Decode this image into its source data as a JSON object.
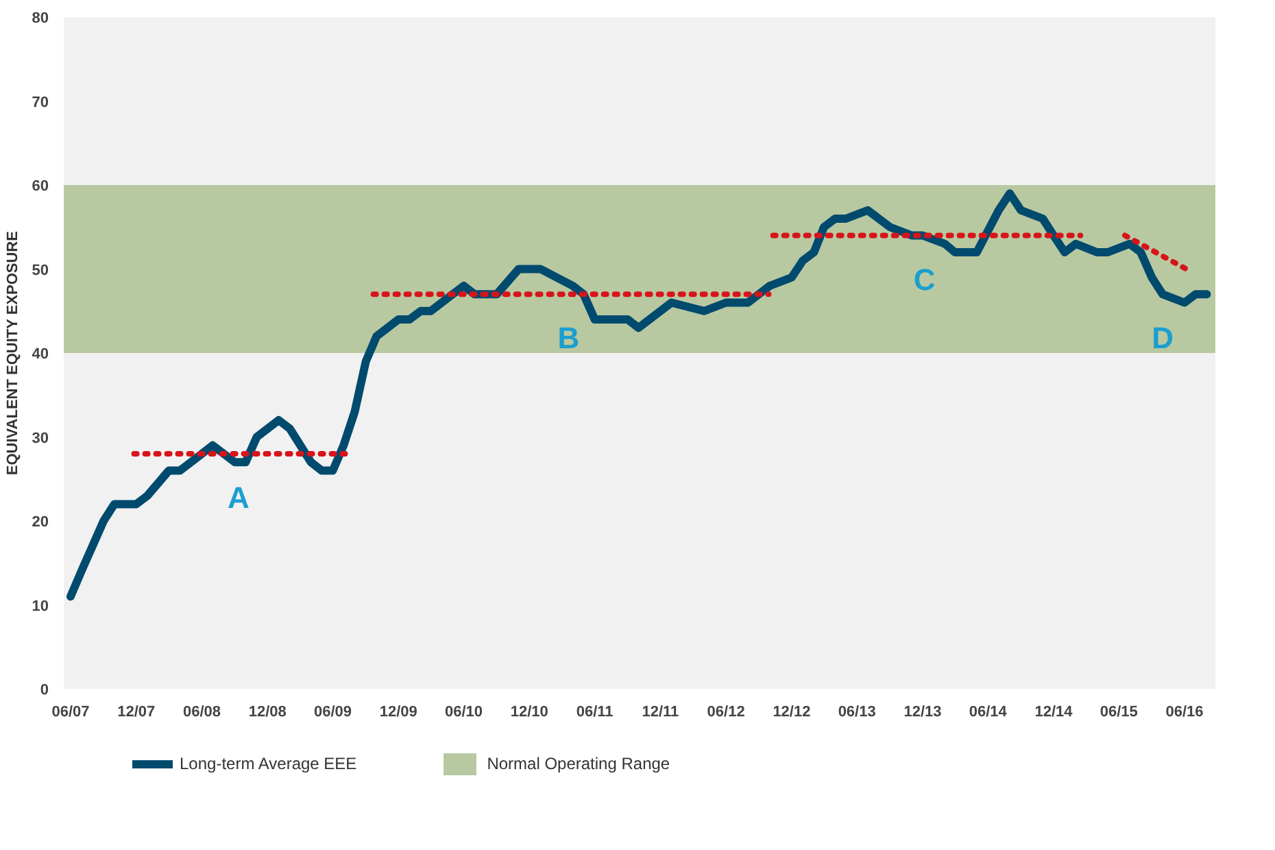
{
  "chart_data": {
    "type": "line",
    "ylabel": "EQUIVALENT EQUITY EXPOSURE",
    "xlim": [
      "2007-05-13",
      "2016-02-25"
    ],
    "ylim": [
      0,
      80
    ],
    "yticks": [
      0,
      10,
      20,
      30,
      40,
      50,
      60,
      70,
      80
    ],
    "xticks": [
      {
        "value": "2007-06",
        "label": "06/07"
      },
      {
        "value": "2007-12",
        "label": "12/07"
      },
      {
        "value": "2008-06",
        "label": "06/08"
      },
      {
        "value": "2008-12",
        "label": "12/08"
      },
      {
        "value": "2009-06",
        "label": "06/09"
      },
      {
        "value": "2009-12",
        "label": "12/09"
      },
      {
        "value": "2010-06",
        "label": "06/10"
      },
      {
        "value": "2010-12",
        "label": "12/10"
      },
      {
        "value": "2011-06",
        "label": "06/11"
      },
      {
        "value": "2011-12",
        "label": "12/11"
      },
      {
        "value": "2012-06",
        "label": "06/12"
      },
      {
        "value": "2012-12",
        "label": "12/12"
      },
      {
        "value": "2013-06",
        "label": "06/13"
      },
      {
        "value": "2013-12",
        "label": "12/13"
      },
      {
        "value": "2014-06",
        "label": "06/14"
      },
      {
        "value": "2014-12",
        "label": "12/14"
      },
      {
        "value": "2015-06",
        "label": "06/15"
      },
      {
        "value": "2015-12",
        "label": "06/16"
      }
    ],
    "grid": false,
    "legend": "bottom",
    "marker": "none",
    "series": [
      {
        "name": "Long-term Average EEE",
        "color": "#004a6e",
        "line_style": "solid",
        "x": [
          "2007-06",
          "2007-07",
          "2007-09",
          "2007-10",
          "2007-11",
          "2007-12",
          "2008-01",
          "2008-03",
          "2008-04",
          "2008-06",
          "2008-07",
          "2008-09",
          "2008-10",
          "2008-11",
          "2009-01",
          "2009-02",
          "2009-04",
          "2009-05",
          "2009-06",
          "2009-07",
          "2009-08",
          "2009-09",
          "2009-10",
          "2009-12",
          "2010-01",
          "2010-02",
          "2010-03",
          "2010-05",
          "2010-06",
          "2010-07",
          "2010-09",
          "2010-11",
          "2010-12",
          "2011-01",
          "2011-04",
          "2011-05",
          "2011-06",
          "2011-07",
          "2011-09",
          "2011-10",
          "2012-01",
          "2012-04",
          "2012-06",
          "2012-08",
          "2012-10",
          "2012-12",
          "2013-01",
          "2013-02",
          "2013-03",
          "2013-04",
          "2013-05",
          "2013-07",
          "2013-08",
          "2013-09",
          "2013-11",
          "2013-12",
          "2014-02",
          "2014-03",
          "2014-04",
          "2014-05",
          "2014-07",
          "2014-08",
          "2014-09",
          "2014-11",
          "2014-12",
          "2015-01",
          "2015-02",
          "2015-04",
          "2015-05",
          "2015-07",
          "2015-08",
          "2015-09",
          "2015-10",
          "2015-12",
          "2016-01",
          "2016-02"
        ],
        "values": [
          11,
          14,
          20,
          22,
          22,
          22,
          23,
          26,
          26,
          28,
          29,
          27,
          27,
          30,
          32,
          31,
          27,
          26,
          26,
          29,
          33,
          39,
          42,
          44,
          44,
          45,
          45,
          47,
          48,
          47,
          47,
          50,
          50,
          50,
          48,
          47,
          44,
          44,
          44,
          43,
          46,
          45,
          46,
          46,
          48,
          49,
          51,
          52,
          55,
          56,
          56,
          57,
          56,
          55,
          54,
          54,
          53,
          52,
          52,
          52,
          57,
          59,
          57,
          56,
          54,
          52,
          53,
          52,
          52,
          53,
          52,
          49,
          47,
          46,
          47,
          47
        ]
      },
      {
        "color": "#d7141a",
        "line_style": "dotted",
        "x": [
          "2007-11-25",
          "2009-07-10"
        ],
        "values": [
          28,
          28
        ]
      },
      {
        "color": "#d7141a",
        "line_style": "dotted",
        "x": [
          "2009-09-22",
          "2012-09-28"
        ],
        "values": [
          47,
          47
        ]
      },
      {
        "color": "#d7141a",
        "line_style": "dotted",
        "x": [
          "2012-10-10",
          "2015-02-14"
        ],
        "values": [
          54,
          54
        ]
      },
      {
        "color": "#d7141a",
        "line_style": "dotted",
        "x": [
          "2015-06-18",
          "2015-12-06"
        ],
        "values": [
          54,
          50
        ]
      }
    ],
    "bands": [
      {
        "axis": "y",
        "from": 40,
        "to": 60,
        "label": "Normal Operating Range",
        "color": "#b8c9a1"
      }
    ],
    "annotations": [
      {
        "text": "A",
        "x": "2008-09-11",
        "y": 28
      },
      {
        "text": "B",
        "x": "2011-03-20",
        "y": 47
      },
      {
        "text": "C",
        "x": "2013-12-06",
        "y": 54
      },
      {
        "text": "D",
        "x": "2015-10",
        "y": 47
      }
    ]
  }
}
